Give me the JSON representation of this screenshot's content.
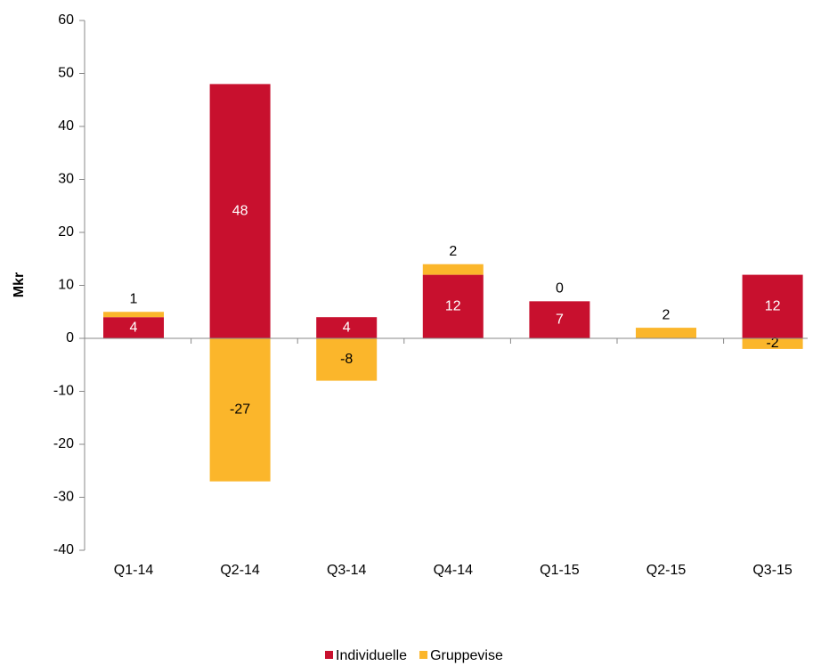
{
  "chart_data": {
    "type": "stacked_bar",
    "y_label": "Mkr",
    "categories": [
      "Q1-14",
      "Q2-14",
      "Q3-14",
      "Q4-14",
      "Q1-15",
      "Q2-15",
      "Q3-15"
    ],
    "series": [
      {
        "name": "Individuelle",
        "color": "#c8102e",
        "values": [
          4,
          48,
          4,
          12,
          7,
          null,
          12
        ]
      },
      {
        "name": "Gruppevise",
        "color": "#fbb62b",
        "values": [
          1,
          -27,
          -8,
          2,
          0,
          2,
          -2
        ]
      }
    ],
    "ylim": [
      -40,
      60
    ],
    "yticks": [
      -40,
      -30,
      -20,
      -10,
      0,
      10,
      20,
      30,
      40,
      50,
      60
    ],
    "legend": "bottom"
  }
}
